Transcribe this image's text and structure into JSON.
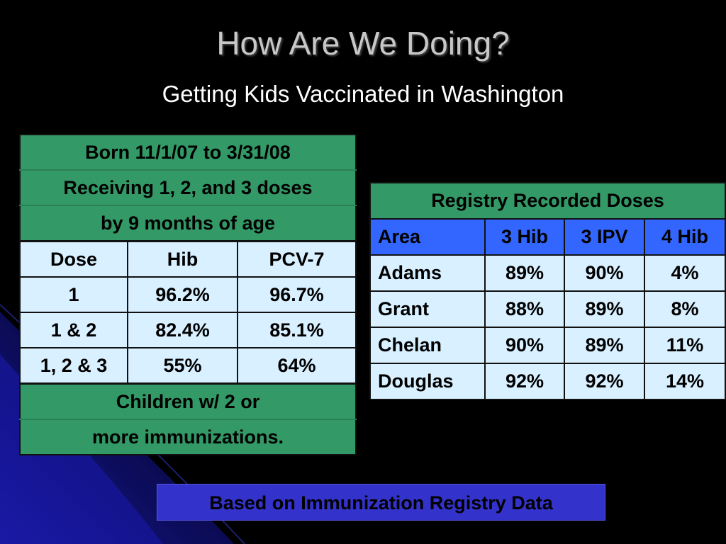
{
  "title": "How Are We Doing?",
  "subtitle": "Getting Kids Vaccinated in Washington",
  "left_table": {
    "header_lines": [
      "Born 11/1/07 to 3/31/08",
      "Receiving 1, 2, and 3 doses",
      "by 9 months of age"
    ],
    "columns": [
      "Dose",
      "Hib",
      "PCV-7"
    ],
    "rows": [
      [
        "1",
        "96.2%",
        "96.7%"
      ],
      [
        "1 & 2",
        "82.4%",
        "85.1%"
      ],
      [
        "1, 2 & 3",
        "55%",
        "64%"
      ]
    ],
    "footer_lines": [
      "Children w/ 2 or",
      "more immunizations."
    ]
  },
  "right_table": {
    "title": "Registry Recorded Doses",
    "columns": [
      "Area",
      "3 Hib",
      "3 IPV",
      "4 Hib"
    ],
    "rows": [
      [
        "Adams",
        "89%",
        "90%",
        "4%"
      ],
      [
        "Grant",
        "88%",
        "89%",
        "8%"
      ],
      [
        "Chelan",
        "90%",
        "89%",
        "11%"
      ],
      [
        "Douglas",
        "92%",
        "92%",
        "14%"
      ]
    ]
  },
  "footer_note": "Based on Immunization Registry Data",
  "colors": {
    "background": "#000000",
    "header_green": "#339966",
    "cell_light_blue": "#d8f0ff",
    "header_blue": "#3366ff",
    "footer_box": "#3333cc",
    "title_gray": "#c8c8c8"
  }
}
